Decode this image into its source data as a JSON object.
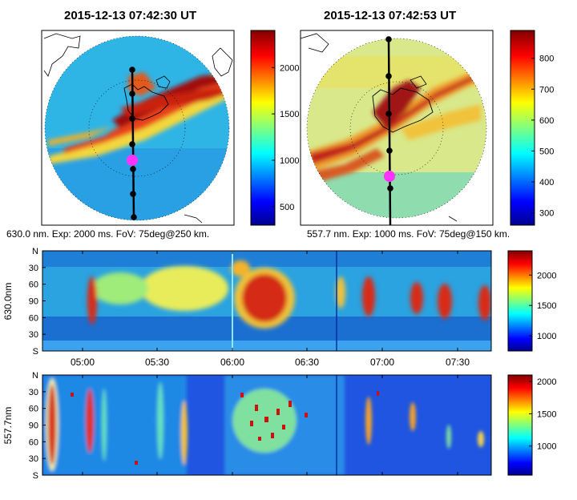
{
  "panels": [
    {
      "title": "2015-12-13 07:42:30 UT",
      "caption": "630.0 nm. Exp: 2000 ms. FoV: 75deg@250 km."
    },
    {
      "title": "2015-12-13 07:42:53 UT",
      "caption": "557.7 nm. Exp: 1000 ms. FoV: 75deg@150 km."
    }
  ],
  "chart_data": [
    {
      "type": "heatmap",
      "title": "2015-12-13 07:42:30 UT",
      "subtitle": "630.0 nm. Exp: 2000 ms. FoV: 75deg@250 km.",
      "colorbar": {
        "ticks": [
          500,
          1000,
          1500,
          2000
        ],
        "range": [
          300,
          2400
        ]
      },
      "colormap": "jet"
    },
    {
      "type": "heatmap",
      "title": "2015-12-13 07:42:53 UT",
      "subtitle": "557.7 nm. Exp: 1000 ms. FoV: 75deg@150 km.",
      "colorbar": {
        "ticks": [
          300,
          400,
          500,
          600,
          700,
          800
        ],
        "range": [
          260,
          890
        ]
      },
      "colormap": "jet"
    },
    {
      "type": "heatmap",
      "ylabel": "630.0nm",
      "yticks": [
        "N",
        "30",
        "60",
        "90",
        "60",
        "30",
        "S"
      ],
      "xticks": [
        "05:00",
        "05:30",
        "06:00",
        "06:30",
        "07:00",
        "07:30"
      ],
      "colorbar": {
        "ticks": [
          1000,
          1500,
          2000
        ],
        "range": [
          750,
          2400
        ]
      },
      "colormap": "jet"
    },
    {
      "type": "heatmap",
      "ylabel": "557.7nm",
      "yticks": [
        "N",
        "30",
        "60",
        "90",
        "60",
        "30",
        "S"
      ],
      "xticks": [],
      "colorbar": {
        "ticks": [
          1000,
          1500,
          2000
        ],
        "range": [
          550,
          2100
        ]
      },
      "colormap": "jet"
    }
  ]
}
